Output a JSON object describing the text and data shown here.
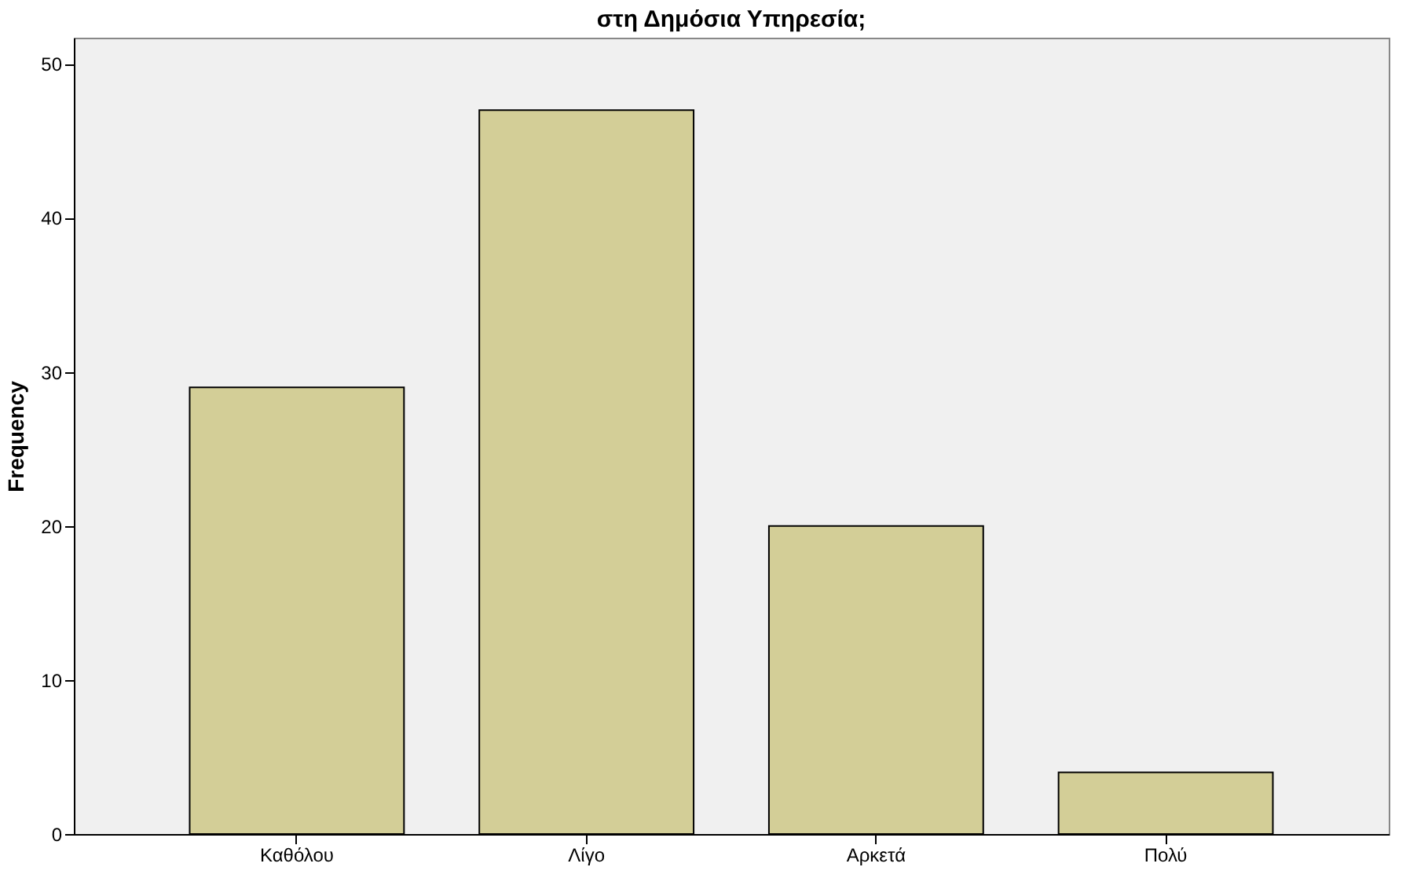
{
  "chart_data": {
    "type": "bar",
    "title": "στη Δημόσια Υπηρεσία;",
    "ylabel": "Frequency",
    "categories": [
      "Καθόλου",
      "Λίγο",
      "Αρκετά",
      "Πολύ"
    ],
    "values": [
      29,
      47,
      20,
      4
    ],
    "color": "#d3ce97",
    "ylim": [
      0,
      51.7
    ],
    "yticks": [
      0,
      10,
      20,
      30,
      40,
      50
    ],
    "grid": false
  }
}
